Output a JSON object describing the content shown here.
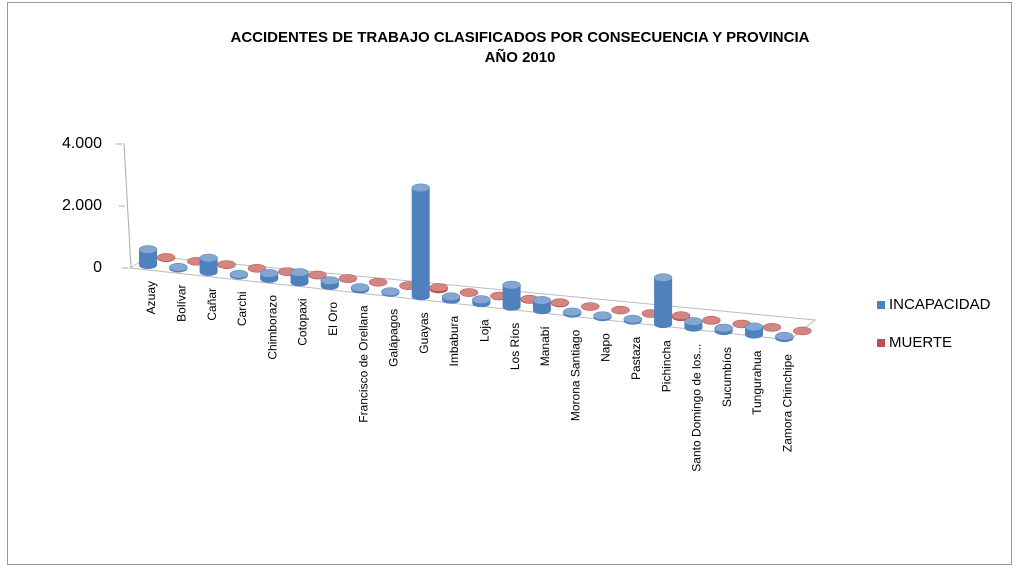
{
  "chart_data": {
    "type": "bar3d",
    "title": "ACCIDENTES DE TRABAJO CLASIFICADOS POR CONSECUENCIA Y PROVINCIA",
    "subtitle": "AÑO 2010",
    "categories": [
      "Azuay",
      "Bolívar",
      "Cañar",
      "Carchi",
      "Chimborazo",
      "Cotopaxi",
      "El Oro",
      "Francisco de Orellana",
      "Galápagos",
      "Guayas",
      "Imbabura",
      "Loja",
      "Los Ríos",
      "Manabí",
      "Morona Santiago",
      "Napo",
      "Pastaza",
      "Pichincha",
      "Santo Domingo de los...",
      "Sucumbíos",
      "Tungurahua",
      "Zamora Chinchipe"
    ],
    "series": [
      {
        "name": "INCAPACIDAD",
        "color": "#4f81bd",
        "values": [
          500,
          40,
          450,
          40,
          180,
          320,
          170,
          60,
          40,
          3500,
          100,
          120,
          700,
          320,
          60,
          50,
          50,
          1500,
          200,
          100,
          250,
          60
        ]
      },
      {
        "name": "MUERTE",
        "color": "#c0504d",
        "values": [
          20,
          5,
          15,
          5,
          10,
          15,
          15,
          5,
          5,
          60,
          10,
          10,
          20,
          20,
          5,
          5,
          5,
          50,
          15,
          5,
          10,
          5
        ]
      }
    ],
    "ylim": [
      0,
      4000
    ],
    "yticks": [
      0,
      {
        "value": 2000,
        "label": "2.000"
      },
      {
        "value": 4000,
        "label": "4.000"
      }
    ],
    "legend": "right"
  }
}
